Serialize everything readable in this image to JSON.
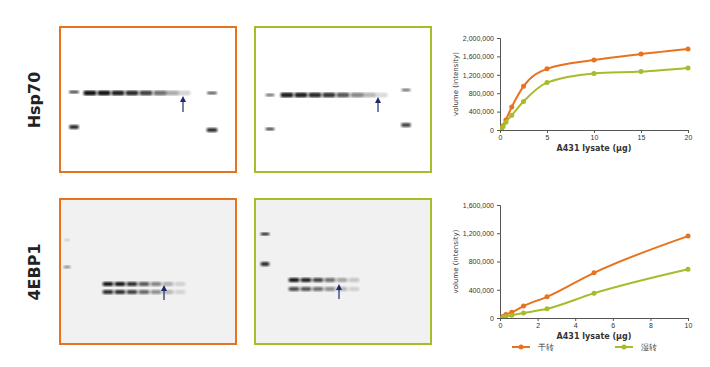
{
  "row_labels": [
    "Hsp70",
    "4EBP1"
  ],
  "chart_data": [
    {
      "type": "line",
      "marker": "circle",
      "xlabel": "A431 lysate (µg)",
      "ylabel": "volume (intensity)",
      "x": [
        0.156,
        0.3125,
        0.625,
        1.25,
        2.5,
        5,
        10,
        15,
        20
      ],
      "series": [
        {
          "name": "干转",
          "color": "#e8731f",
          "values": [
            40000,
            90000,
            220000,
            500000,
            950000,
            1330000,
            1520000,
            1650000,
            1760000
          ]
        },
        {
          "name": "湿转",
          "color": "#a8bb2a",
          "values": [
            30000,
            70000,
            170000,
            320000,
            620000,
            1030000,
            1230000,
            1270000,
            1350000
          ]
        }
      ],
      "xlim": [
        0,
        20
      ],
      "xticks": [
        0,
        5,
        10,
        15,
        20
      ],
      "ylim": [
        0,
        2000000
      ],
      "yticks": [
        0,
        {
          "value": 400000,
          "label": "400,000"
        },
        {
          "value": 800000,
          "label": "800,000"
        },
        {
          "value": 1200000,
          "label": "1,200,000"
        },
        {
          "value": 1600000,
          "label": "1,600,000"
        },
        {
          "value": 2000000,
          "label": "2,000,000"
        }
      ]
    },
    {
      "type": "line",
      "marker": "circle",
      "legend": "bottom",
      "xlabel": "A431 lysate (µg)",
      "ylabel": "volume (intensity)",
      "x": [
        0.156,
        0.3125,
        0.625,
        1.25,
        2.5,
        5,
        10
      ],
      "series": [
        {
          "name": "干转",
          "color": "#e8731f",
          "values": [
            20000,
            50000,
            80000,
            170000,
            300000,
            640000,
            1160000
          ]
        },
        {
          "name": "湿转",
          "color": "#a8bb2a",
          "values": [
            10000,
            20000,
            40000,
            70000,
            130000,
            350000,
            690000
          ]
        }
      ],
      "xlim": [
        0,
        10
      ],
      "xticks": [
        0,
        2,
        4,
        6,
        8,
        10
      ],
      "ylim": [
        0,
        1600000
      ],
      "yticks": [
        0,
        {
          "value": 400000,
          "label": "400,000"
        },
        {
          "value": 800000,
          "label": "800,000"
        },
        {
          "value": 1200000,
          "label": "1,200,000"
        },
        {
          "value": 1600000,
          "label": "1,600,000"
        }
      ]
    }
  ]
}
